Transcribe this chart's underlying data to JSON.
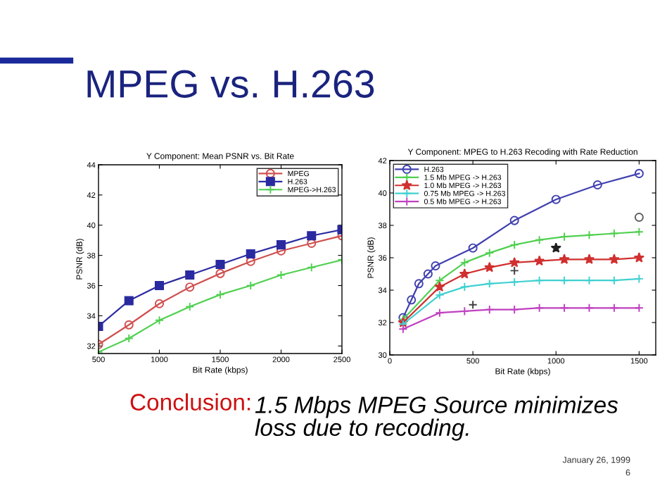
{
  "chart_data": [
    {
      "type": "line",
      "title": "Y Component: Mean PSNR vs. Bit Rate",
      "xlabel": "Bit Rate (kbps)",
      "ylabel": "PSNR (dB)",
      "x": [
        500,
        750,
        1000,
        1250,
        1500,
        1750,
        2000,
        2250,
        2500
      ],
      "series": [
        {
          "name": "MPEG",
          "color": "#d05050",
          "marker": "circle",
          "values": [
            32.1,
            33.4,
            34.8,
            35.9,
            36.8,
            37.6,
            38.3,
            38.8,
            39.3
          ]
        },
        {
          "name": "H.263",
          "color": "#2a2aa0",
          "marker": "square",
          "values": [
            33.3,
            35.0,
            36.0,
            36.7,
            37.4,
            38.1,
            38.7,
            39.3,
            39.7
          ]
        },
        {
          "name": "MPEG->H.263",
          "color": "#50d050",
          "marker": "cross",
          "values": [
            31.6,
            32.5,
            33.7,
            34.6,
            35.4,
            36.0,
            36.7,
            37.2,
            37.7
          ]
        }
      ],
      "xlim": [
        500,
        2500
      ],
      "xticks": [
        500,
        1000,
        1500,
        2000,
        2500
      ],
      "ylim": [
        31.5,
        44
      ],
      "yticks": [
        32,
        34,
        36,
        38,
        40,
        42,
        44
      ],
      "legend": "top right",
      "grid": false,
      "annotations": [
        "MPEG vs. H.263",
        "Conclusion:",
        "1.5 Mbps MPEG Source minimizes\nloss due to recoding.",
        "January 26, 1999",
        "6"
      ]
    },
    {
      "type": "line",
      "title": "Y Component: MPEG to H.263 Recoding with Rate Reduction",
      "xlabel": "Bit Rate (kbps)",
      "ylabel": "PSNR (dB)",
      "series": [
        {
          "name": "H.263",
          "color": "#4040b0",
          "marker": "circle",
          "x": [
            80,
            130,
            175,
            230,
            275,
            500,
            750,
            1000,
            1250,
            1500
          ],
          "values": [
            32.3,
            33.4,
            34.4,
            35.0,
            35.5,
            36.6,
            38.3,
            39.6,
            40.5,
            41.2
          ]
        },
        {
          "name": "1.5 Mb MPEG -> H.263",
          "color": "#50d050",
          "marker": "cross",
          "x": [
            80,
            300,
            450,
            600,
            750,
            900,
            1050,
            1200,
            1350,
            1500
          ],
          "values": [
            32.2,
            34.6,
            35.7,
            36.3,
            36.8,
            37.1,
            37.3,
            37.4,
            37.5,
            37.6
          ]
        },
        {
          "name": "1.0 Mb MPEG -> H.263",
          "color": "#d03030",
          "marker": "star",
          "x": [
            80,
            300,
            450,
            600,
            750,
            900,
            1050,
            1200,
            1350,
            1500
          ],
          "values": [
            32.0,
            34.2,
            35.0,
            35.4,
            35.7,
            35.8,
            35.9,
            35.9,
            35.9,
            36.0
          ]
        },
        {
          "name": "0.75 Mb MPEG -> H.263",
          "color": "#40d0d0",
          "marker": "cross",
          "x": [
            80,
            300,
            450,
            600,
            750,
            900,
            1050,
            1200,
            1350,
            1500
          ],
          "values": [
            31.9,
            33.7,
            34.2,
            34.4,
            34.5,
            34.6,
            34.6,
            34.6,
            34.6,
            34.7
          ]
        },
        {
          "name": "0.5 Mb MPEG -> H.263",
          "color": "#c040c0",
          "marker": "cross",
          "x": [
            80,
            300,
            450,
            600,
            750,
            900,
            1050,
            1200,
            1350,
            1500
          ],
          "values": [
            31.6,
            32.6,
            32.7,
            32.8,
            32.8,
            32.9,
            32.9,
            32.9,
            32.9,
            32.9
          ]
        },
        {
          "type": "scatter",
          "color": "#606060",
          "marker": "circle",
          "x": [
            1500
          ],
          "values": [
            38.5
          ]
        },
        {
          "type": "scatter",
          "color": "#202020",
          "marker": "star",
          "x": [
            1000
          ],
          "values": [
            36.6
          ]
        },
        {
          "type": "scatter",
          "color": "#404040",
          "marker": "cross",
          "x": [
            500,
            750
          ],
          "values": [
            33.1,
            35.2
          ]
        }
      ],
      "xlim": [
        0,
        1600
      ],
      "xticks": [
        0,
        500,
        1000,
        1500
      ],
      "ylim": [
        30,
        42
      ],
      "yticks": [
        30,
        32,
        34,
        36,
        38,
        40,
        42
      ],
      "legend": "top left",
      "grid": false
    }
  ]
}
